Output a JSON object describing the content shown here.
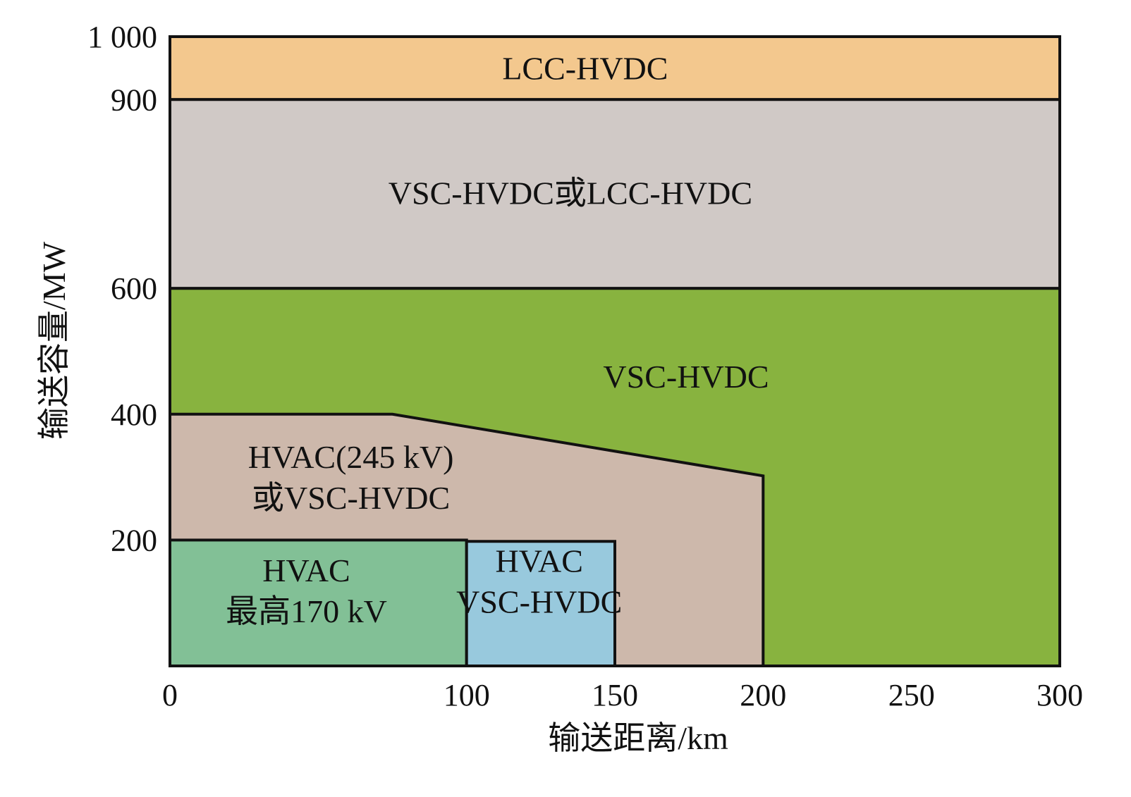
{
  "chart_data": {
    "type": "area",
    "xlabel": "输送距离/km",
    "ylabel": "输送容量/MW",
    "xlim": [
      0,
      300
    ],
    "ylim": [
      0,
      1000
    ],
    "x_ticks": [
      {
        "value": 0,
        "label": "0"
      },
      {
        "value": 100,
        "label": "100"
      },
      {
        "value": 150,
        "label": "150"
      },
      {
        "value": 200,
        "label": "200"
      },
      {
        "value": 250,
        "label": "250"
      },
      {
        "value": 300,
        "label": "300"
      }
    ],
    "y_ticks": [
      {
        "value": 200,
        "label": "200"
      },
      {
        "value": 400,
        "label": "400"
      },
      {
        "value": 600,
        "label": "600"
      },
      {
        "value": 900,
        "label": "900"
      },
      {
        "value": 1000,
        "label": "1 000"
      }
    ],
    "grid": false,
    "regions": [
      {
        "id": "lcc",
        "lines": [
          "LCC-HVDC"
        ],
        "color": "#F3C88E",
        "polygon": [
          [
            0,
            900
          ],
          [
            300,
            900
          ],
          [
            300,
            1000
          ],
          [
            0,
            1000
          ]
        ],
        "label_at": [
          140,
          950
        ]
      },
      {
        "id": "vsc-or-lcc",
        "lines": [
          "VSC-HVDC或LCC-HVDC"
        ],
        "color": "#D0C9C6",
        "polygon": [
          [
            0,
            600
          ],
          [
            300,
            600
          ],
          [
            300,
            900
          ],
          [
            0,
            900
          ]
        ],
        "label_at": [
          135,
          752
        ]
      },
      {
        "id": "vsc",
        "lines": [
          "VSC-HVDC"
        ],
        "color": "#88B33F",
        "polygon": [
          [
            0,
            0
          ],
          [
            300,
            0
          ],
          [
            300,
            600
          ],
          [
            0,
            600
          ]
        ],
        "label_at": [
          174,
          460
        ]
      },
      {
        "id": "hvac245",
        "lines": [
          "HVAC(245 kV)",
          "或VSC-HVDC"
        ],
        "color": "#CDB8AB",
        "polygon": [
          [
            0,
            0
          ],
          [
            200,
            0
          ],
          [
            200,
            302
          ],
          [
            75,
            400
          ],
          [
            0,
            400
          ]
        ],
        "label_at": [
          61,
          300
        ]
      },
      {
        "id": "hvac170",
        "lines": [
          "HVAC",
          "最高170 kV"
        ],
        "color": "#82C096",
        "polygon": [
          [
            0,
            0
          ],
          [
            100,
            0
          ],
          [
            100,
            200
          ],
          [
            0,
            200
          ]
        ],
        "label_at": [
          46,
          120
        ]
      },
      {
        "id": "hvac-vsc",
        "lines": [
          "HVAC",
          "VSC-HVDC"
        ],
        "color": "#98C9DD",
        "polygon": [
          [
            100,
            0
          ],
          [
            150,
            0
          ],
          [
            150,
            198
          ],
          [
            100,
            198
          ]
        ],
        "label_at": [
          124.5,
          135
        ]
      }
    ]
  }
}
